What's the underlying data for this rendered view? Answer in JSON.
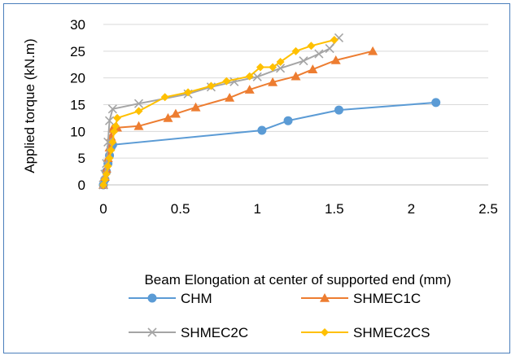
{
  "chart_data": {
    "type": "scatter",
    "xlabel": "Beam Elongation at center of supported end (mm)",
    "ylabel": "Applied torque (kN.m)",
    "xlim": [
      0,
      2.5
    ],
    "ylim": [
      0,
      30
    ],
    "x_ticks": [
      "0",
      "0.5",
      "1",
      "1.5",
      "2",
      "2.5"
    ],
    "y_ticks": [
      "0",
      "5",
      "10",
      "15",
      "20",
      "25",
      "30"
    ],
    "grid": "horizontal",
    "legend_position": "bottom",
    "series": [
      {
        "name": "CHM",
        "color": "#5b9bd5",
        "marker": "circle",
        "points": [
          [
            0,
            0
          ],
          [
            0.01,
            1
          ],
          [
            0.02,
            2.5
          ],
          [
            0.03,
            4
          ],
          [
            0.04,
            5.5
          ],
          [
            0.05,
            7
          ],
          [
            0.06,
            7.5
          ],
          [
            1.03,
            10.2
          ],
          [
            1.2,
            12
          ],
          [
            1.53,
            14
          ],
          [
            2.16,
            15.4
          ]
        ]
      },
      {
        "name": "SHMEC1C",
        "color": "#ed7d31",
        "marker": "triangle",
        "points": [
          [
            0,
            0
          ],
          [
            0.01,
            1.5
          ],
          [
            0.02,
            3
          ],
          [
            0.03,
            5
          ],
          [
            0.04,
            7
          ],
          [
            0.05,
            9
          ],
          [
            0.06,
            10.5
          ],
          [
            0.09,
            10.7
          ],
          [
            0.23,
            11
          ],
          [
            0.42,
            12.5
          ],
          [
            0.47,
            13.3
          ],
          [
            0.6,
            14.5
          ],
          [
            0.82,
            16.3
          ],
          [
            0.95,
            17.8
          ],
          [
            1.1,
            19.2
          ],
          [
            1.25,
            20.3
          ],
          [
            1.36,
            21.6
          ],
          [
            1.51,
            23.3
          ],
          [
            1.75,
            25
          ]
        ]
      },
      {
        "name": "SHMEC2C",
        "color": "#a5a5a5",
        "marker": "x",
        "points": [
          [
            0,
            0
          ],
          [
            0.01,
            2
          ],
          [
            0.02,
            4
          ],
          [
            0.03,
            8
          ],
          [
            0.04,
            12
          ],
          [
            0.06,
            14.2
          ],
          [
            0.23,
            15.2
          ],
          [
            0.55,
            17
          ],
          [
            0.7,
            18.3
          ],
          [
            0.85,
            19.3
          ],
          [
            1.0,
            20.2
          ],
          [
            1.15,
            21.8
          ],
          [
            1.3,
            23.2
          ],
          [
            1.4,
            24.5
          ],
          [
            1.47,
            25.5
          ],
          [
            1.53,
            27.5
          ]
        ]
      },
      {
        "name": "SHMEC2CS",
        "color": "#ffc000",
        "marker": "diamond",
        "points": [
          [
            0,
            0
          ],
          [
            0.01,
            1
          ],
          [
            0.02,
            2
          ],
          [
            0.03,
            3.5
          ],
          [
            0.04,
            5
          ],
          [
            0.05,
            6.5
          ],
          [
            0.06,
            8
          ],
          [
            0.07,
            10
          ],
          [
            0.08,
            11
          ],
          [
            0.09,
            12.5
          ],
          [
            0.23,
            13.8
          ],
          [
            0.4,
            16.4
          ],
          [
            0.55,
            17.3
          ],
          [
            0.7,
            18.5
          ],
          [
            0.8,
            19.4
          ],
          [
            0.95,
            20.3
          ],
          [
            1.02,
            22
          ],
          [
            1.1,
            22
          ],
          [
            1.15,
            23
          ],
          [
            1.25,
            25
          ],
          [
            1.35,
            26
          ],
          [
            1.5,
            27.1
          ]
        ]
      }
    ]
  }
}
